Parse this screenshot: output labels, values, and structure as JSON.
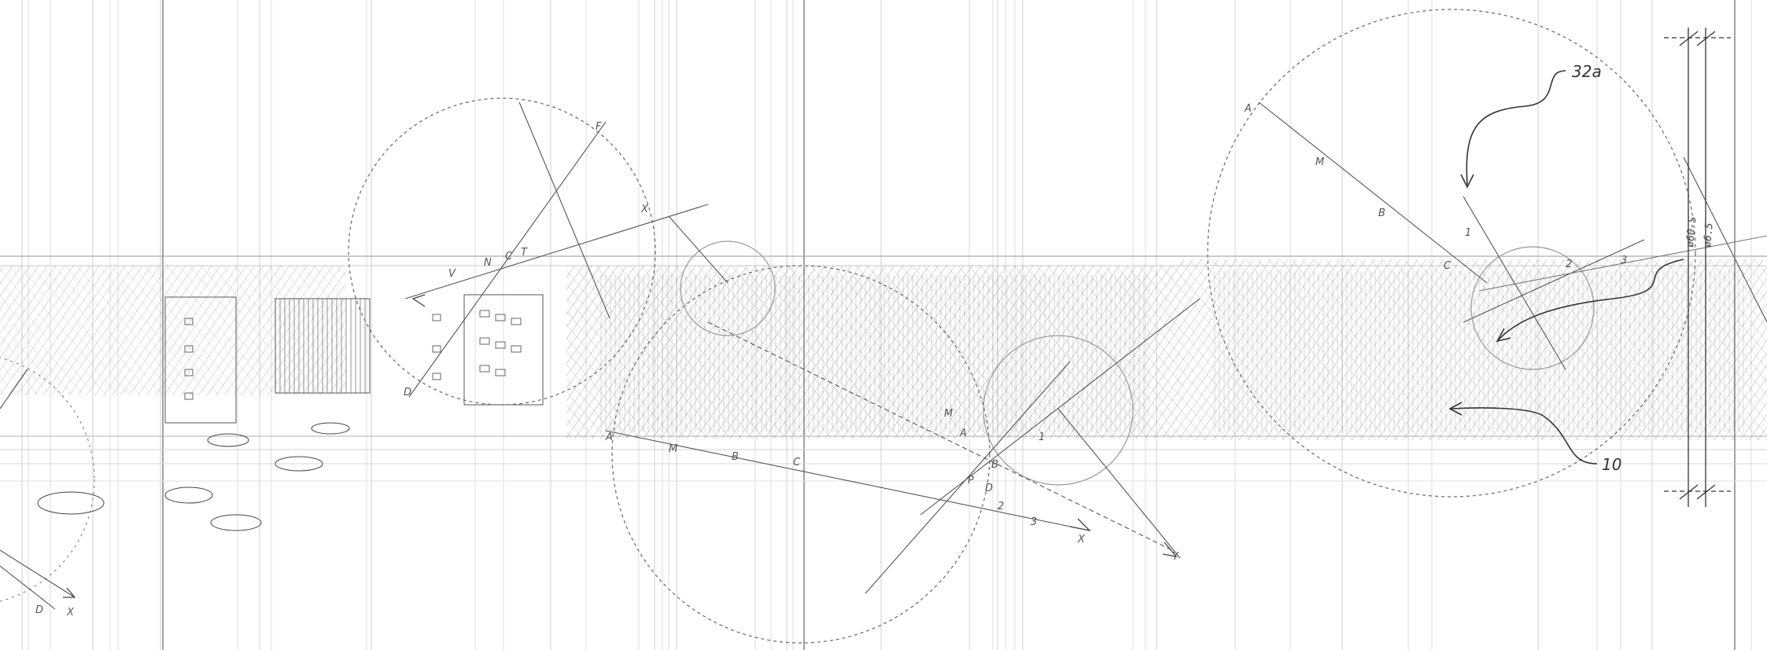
{
  "callouts": {
    "ref_32a": "32a",
    "ref_10": "10"
  },
  "dims": {
    "dim_a": "ø60-S",
    "dim_b": "ø6.5"
  },
  "construction_labels": {
    "left": {
      "V": "V",
      "N": "N",
      "C": "C",
      "T": "T",
      "F": "F",
      "D": "D",
      "A": "A",
      "M": "M",
      "B": "B",
      "X": "X"
    },
    "center": {
      "C": "C",
      "M": "M",
      "B": "B",
      "A": "A",
      "D": "D",
      "P": "P",
      "one": "1",
      "two": "2",
      "three": "3",
      "X": "X",
      "Y": "Y"
    },
    "right": {
      "A": "A",
      "M": "M",
      "B": "B",
      "C": "C",
      "one": "1",
      "two": "2",
      "three": "3"
    },
    "far_left": {
      "D": "D",
      "X": "X"
    }
  },
  "colors": {
    "ink": "#2a2a2a",
    "pencil": "#6f6f6f",
    "faint": "#c4c4c4",
    "paper": "#ffffff"
  }
}
